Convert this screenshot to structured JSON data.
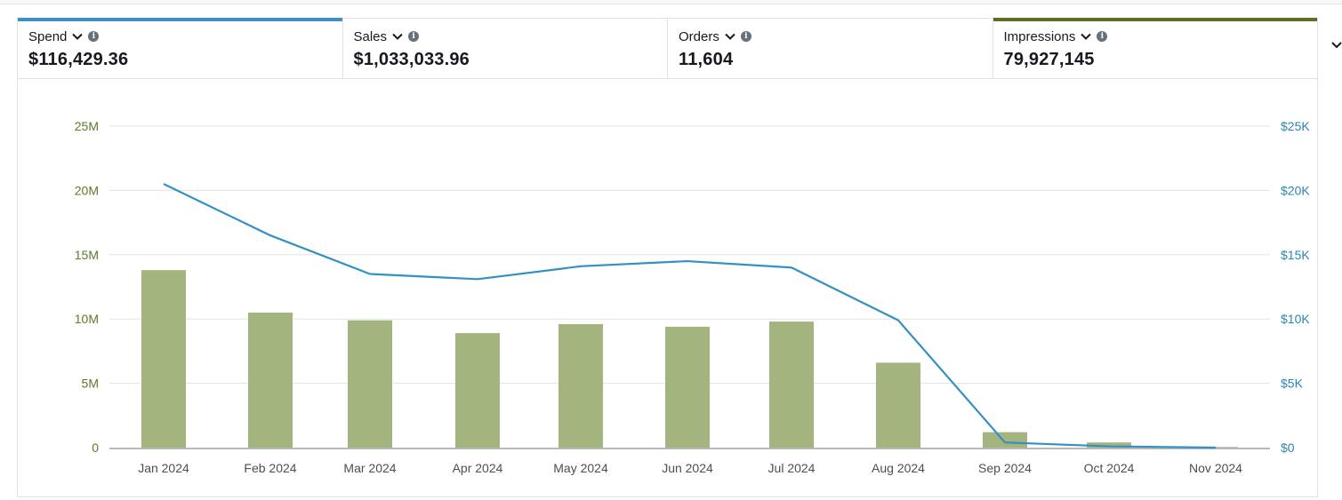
{
  "metrics": [
    {
      "label": "Spend",
      "value": "$116,429.36",
      "accent": "#3d8fc2",
      "selected": true
    },
    {
      "label": "Sales",
      "value": "$1,033,033.96",
      "accent": null,
      "selected": false
    },
    {
      "label": "Orders",
      "value": "11,604",
      "accent": null,
      "selected": false
    },
    {
      "label": "Impressions",
      "value": "79,927,145",
      "accent": "#5b6f27",
      "selected": true
    }
  ],
  "icons": {
    "dropdown": "chevron-down-icon",
    "info": "info-icon",
    "collapse": "chevron-down-icon"
  },
  "chart_data": {
    "type": "bar+line",
    "categories": [
      "Jan 2024",
      "Feb 2024",
      "Mar 2024",
      "Apr 2024",
      "May 2024",
      "Jun 2024",
      "Jul 2024",
      "Aug 2024",
      "Sep 2024",
      "Oct 2024",
      "Nov 2024"
    ],
    "series": [
      {
        "name": "Impressions",
        "type": "bar",
        "axis": "left",
        "color": "#a4b47e",
        "values": [
          13800000,
          10500000,
          9900000,
          8900000,
          9600000,
          9400000,
          9800000,
          6600000,
          1200000,
          400000,
          50000
        ]
      },
      {
        "name": "Spend",
        "type": "line",
        "axis": "right",
        "color": "#3390c2",
        "values": [
          20500,
          16500,
          13500,
          13100,
          14100,
          14500,
          14000,
          9900,
          400,
          100,
          0
        ]
      }
    ],
    "y_left": {
      "min": 0,
      "max": 25000000,
      "ticks": [
        "0",
        "5M",
        "10M",
        "15M",
        "20M",
        "25M"
      ],
      "color": "#5c7a29"
    },
    "y_right": {
      "min": 0,
      "max": 25000,
      "ticks": [
        "$0",
        "$5K",
        "$10K",
        "$15K",
        "$20K",
        "$25K"
      ],
      "color": "#2a86b3"
    },
    "grid": true
  }
}
